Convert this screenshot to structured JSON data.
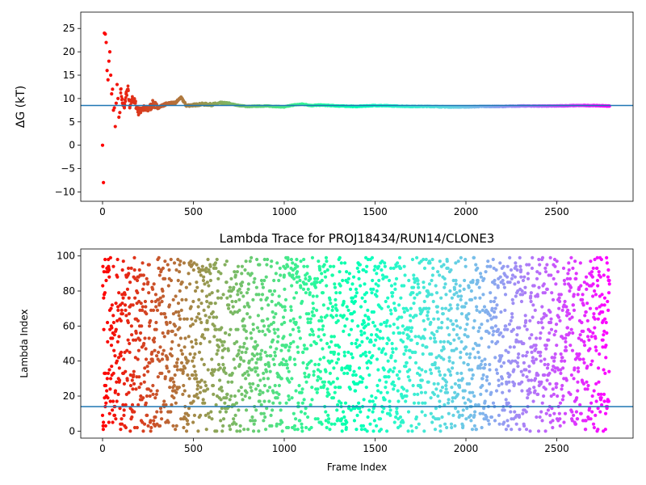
{
  "chart_data": [
    {
      "type": "scatter",
      "title": "",
      "xlabel": "",
      "ylabel": "ΔG (kT)",
      "xlim": [
        -120,
        2920
      ],
      "ylim": [
        -12,
        28.5
      ],
      "xticks": [
        0,
        500,
        1000,
        1500,
        2000,
        2500
      ],
      "yticks": [
        -10,
        -5,
        0,
        5,
        10,
        15,
        20,
        25
      ],
      "grid": false,
      "legend": "none",
      "colormap": "rainbow (red at frame 0 to violet at last frame)",
      "series": [
        {
          "x": [
            0,
            5,
            10,
            15,
            20,
            25,
            30,
            35,
            40,
            45,
            50,
            55,
            60,
            65,
            70,
            75,
            80,
            85,
            90,
            95,
            100,
            110,
            120,
            130,
            140,
            150,
            165,
            180,
            200,
            220,
            240,
            260,
            280,
            300,
            330,
            360,
            400,
            430,
            445,
            460,
            500,
            550,
            600,
            650,
            700,
            750,
            800,
            900,
            1000,
            1050,
            1100,
            1150,
            1200,
            1300,
            1400,
            1500,
            1600,
            1700,
            1800,
            1900,
            2000,
            2100,
            2200,
            2300,
            2400,
            2500,
            2600,
            2700,
            2790
          ],
          "y": [
            0,
            -8,
            24,
            23.8,
            22,
            16,
            14,
            18,
            20,
            15,
            11,
            12,
            7.5,
            8,
            4,
            9,
            13,
            10,
            6,
            7,
            12,
            9,
            8,
            11,
            12,
            8,
            10,
            9,
            7,
            8,
            7.5,
            8,
            9,
            8,
            8.5,
            9,
            9,
            10.2,
            9.5,
            8.5,
            8.6,
            8.8,
            8.7,
            9,
            8.9,
            8.5,
            8.3,
            8.4,
            8.2,
            8.6,
            8.8,
            8.5,
            8.6,
            8.4,
            8.3,
            8.5,
            8.4,
            8.3,
            8.3,
            8.2,
            8.2,
            8.3,
            8.3,
            8.4,
            8.4,
            8.4,
            8.5,
            8.5,
            8.4
          ]
        }
      ],
      "reference_line_y": 8.5,
      "reference_line_color": "#1f77b4"
    },
    {
      "type": "scatter",
      "title": "Lambda Trace for PROJ18434/RUN14/CLONE3",
      "xlabel": "Frame Index",
      "ylabel": "Lambda Index",
      "xlim": [
        -120,
        2920
      ],
      "ylim": [
        -4,
        104
      ],
      "xticks": [
        0,
        500,
        1000,
        1500,
        2000,
        2500
      ],
      "yticks": [
        0,
        20,
        40,
        60,
        80,
        100
      ],
      "grid": false,
      "legend": "none",
      "colormap": "rainbow (red at frame 0 to violet at last frame)",
      "n_points": 2800,
      "x_range": [
        0,
        2790
      ],
      "y_range": [
        0,
        99
      ],
      "reference_line_y": 14,
      "reference_line_color": "#1f77b4"
    }
  ]
}
